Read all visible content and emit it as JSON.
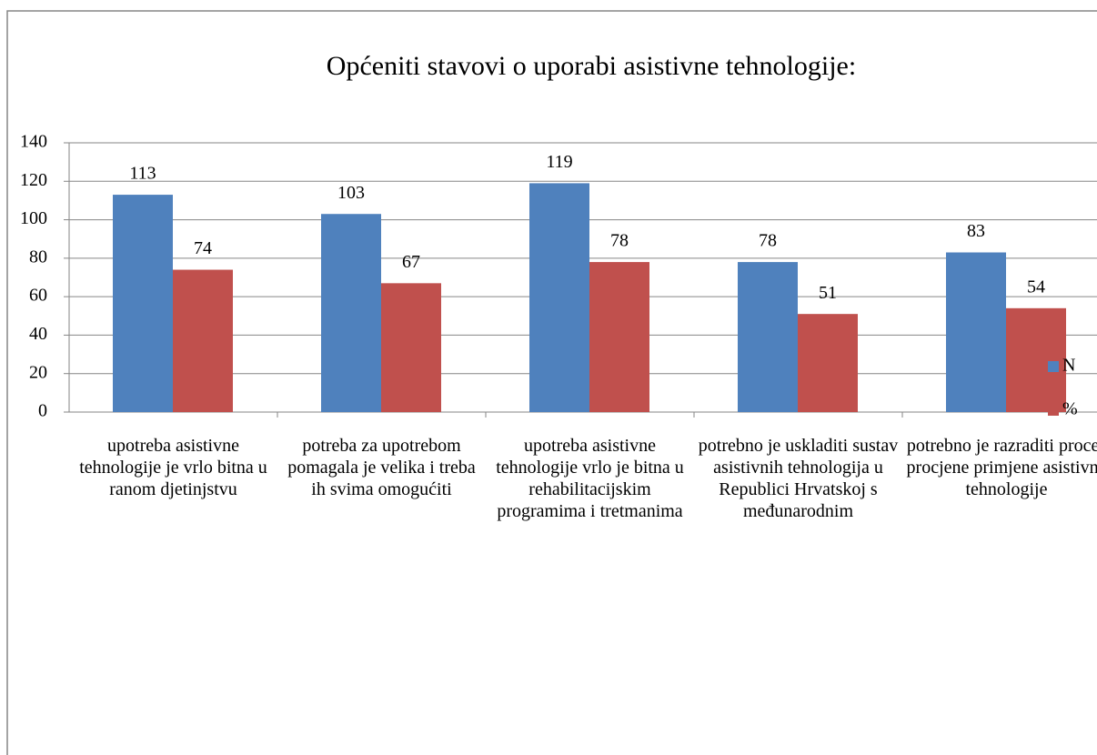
{
  "chart_data": {
    "type": "bar",
    "title": "Općeniti stavovi o uporabi asistivne tehnologije:",
    "categories": [
      "upotreba asistivne tehnologije je vrlo bitna u ranom djetinjstvu",
      "potreba za upotrebom pomagala je velika i treba ih svima omogućiti",
      "upotreba asistivne tehnologije vrlo je bitna u rehabilitacijskim programima i tretmanima",
      "potrebno je uskladiti sustav asistivnih tehnologija u Republici Hrvatskoj s međunarodnim",
      "potrebno je razraditi proces procjene primjene asistivne tehnologije"
    ],
    "series": [
      {
        "name": "N",
        "color": "#4f81bd",
        "values": [
          113,
          103,
          119,
          78,
          83
        ]
      },
      {
        "name": "%",
        "color": "#c0504d",
        "values": [
          74,
          67,
          78,
          51,
          54
        ]
      }
    ],
    "ylim": [
      0,
      140
    ],
    "yticks": [
      0,
      20,
      40,
      60,
      80,
      100,
      120,
      140
    ],
    "grid": true,
    "legend": "right"
  }
}
